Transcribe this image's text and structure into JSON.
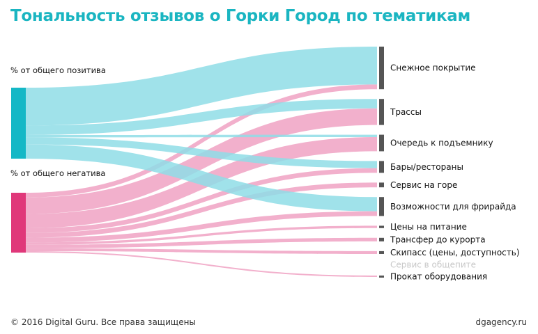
{
  "title": "Тональность отзывов о Горки Город по тематикам",
  "sources": [
    {
      "label": "% от общего позитива",
      "color": "#15b8c6",
      "flow_color": "#8fdde6"
    },
    {
      "label": "% от общего негатива",
      "color": "#e0387a",
      "flow_color": "#f0a2c3"
    }
  ],
  "targets": [
    {
      "label": "Снежное покрытие",
      "positive": 16,
      "negative": 2,
      "faded": false
    },
    {
      "label": "Трассы",
      "positive": 4,
      "negative": 7,
      "faded": false
    },
    {
      "label": "Очередь к подъемнику",
      "positive": 1,
      "negative": 6,
      "faded": false
    },
    {
      "label": "Бары/рестораны",
      "positive": 3,
      "negative": 2,
      "faded": false
    },
    {
      "label": "Сервис на горе",
      "positive": 0,
      "negative": 2,
      "faded": false
    },
    {
      "label": "Возможности для фрирайда",
      "positive": 6,
      "negative": 2,
      "faded": false
    },
    {
      "label": "Цены на питание",
      "positive": 0,
      "negative": 1,
      "faded": false
    },
    {
      "label": "Трансфер до курорта",
      "positive": 0,
      "negative": 1.5,
      "faded": false
    },
    {
      "label": "Скипасс (цены, доступность)",
      "positive": 0,
      "negative": 1.2,
      "faded": false
    },
    {
      "label": "Сервис в общепите",
      "positive": 0,
      "negative": 0,
      "faded": true
    },
    {
      "label": "Прокат оборудования",
      "positive": 0,
      "negative": 0.6,
      "faded": false
    }
  ],
  "target_bar_color": "#555555",
  "faded_color": "#c8c8c8",
  "footer": {
    "copyright": "© 2016 Digital Guru. Все права защищены",
    "site": "dgagency.ru"
  }
}
